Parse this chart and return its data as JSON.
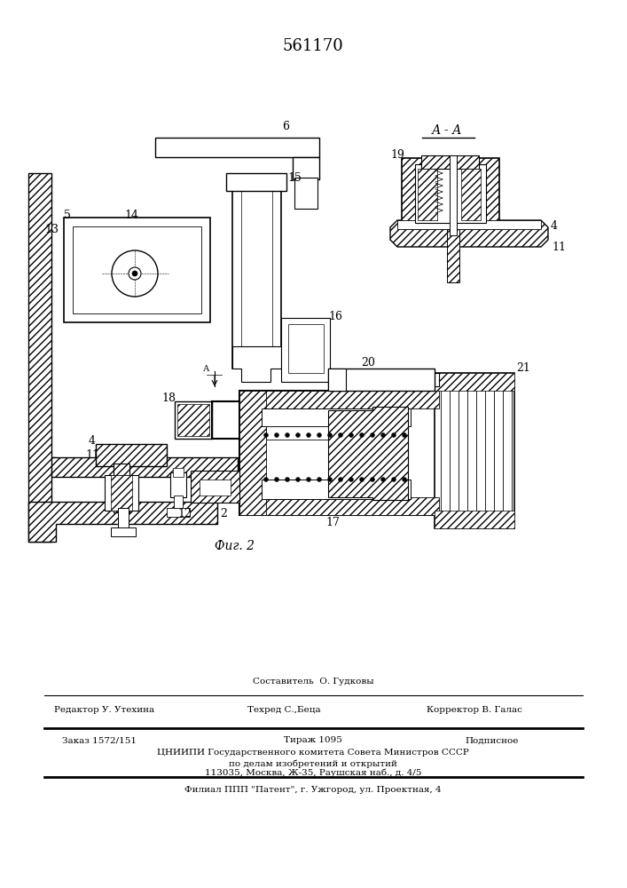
{
  "patent_number": "561170",
  "fig_label": "Фиг. 2",
  "section_label": "А - А",
  "sestavitel": "Составитель  О. Гудковы",
  "redaktor": "Редактор У. Утехина",
  "tehred": "Техред С.,Беца",
  "korrektor": "Корректор В. Галас",
  "zakaz": "Заказ 1572/151",
  "tirazh": "Тираж 1095",
  "podpis": "Подписное",
  "cniip1": "ЦНИИПИ Государственного комитета Совета Министров СССР",
  "cniip2": "по делам изобретений и открытий",
  "cniip3": "113035, Москва, Ж-35, Раушская наб., д. 4/5",
  "filial": "Филиал ППП \"Патент\", г. Ужгород, ул. Проектная, 4",
  "bg_color": "#ffffff",
  "text_color": "#000000",
  "fig_width": 7.07,
  "fig_height": 10.0,
  "dpi": 100
}
